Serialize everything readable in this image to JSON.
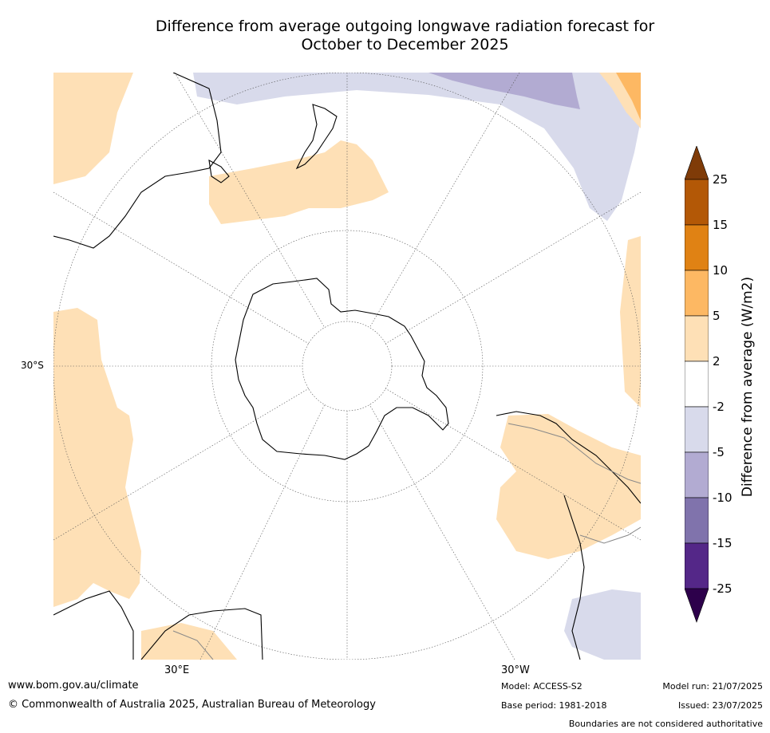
{
  "title_line1": "Difference from average outgoing longwave radiation forecast for",
  "title_line2": "October to December 2025",
  "map": {
    "projection": "south-polar stereographic",
    "lat_label": "30°S",
    "lon_labels": [
      "30°E",
      "30°W"
    ]
  },
  "colorbar": {
    "label": "Difference from average (W/m2)",
    "ticks": [
      "25",
      "15",
      "10",
      "5",
      "2",
      "-2",
      "-5",
      "-10",
      "-15",
      "-25"
    ],
    "bins": [
      {
        "range": "above 25",
        "color": "#7f3b08"
      },
      {
        "range": "15 to 25",
        "color": "#b35806"
      },
      {
        "range": "10 to 15",
        "color": "#e08214"
      },
      {
        "range": "5 to 10",
        "color": "#fdb863"
      },
      {
        "range": "2 to 5",
        "color": "#fee0b6"
      },
      {
        "range": "-2 to 2",
        "color": "#ffffff"
      },
      {
        "range": "-5 to -2",
        "color": "#d8daeb"
      },
      {
        "range": "-10 to -5",
        "color": "#b2abd2"
      },
      {
        "range": "-15 to -10",
        "color": "#8073ac"
      },
      {
        "range": "-25 to -15",
        "color": "#542788"
      },
      {
        "range": "below -25",
        "color": "#2d004b"
      }
    ]
  },
  "footer": {
    "website": "www.bom.gov.au/climate",
    "copyright": "© Commonwealth of Australia 2025, Australian Bureau of Meteorology",
    "model": "Model: ACCESS-S2",
    "base_period": "Base period: 1981-2018",
    "model_run": "Model run: 21/07/2025",
    "issued": "Issued: 23/07/2025",
    "disclaimer": "Boundaries are not considered authoritative"
  }
}
